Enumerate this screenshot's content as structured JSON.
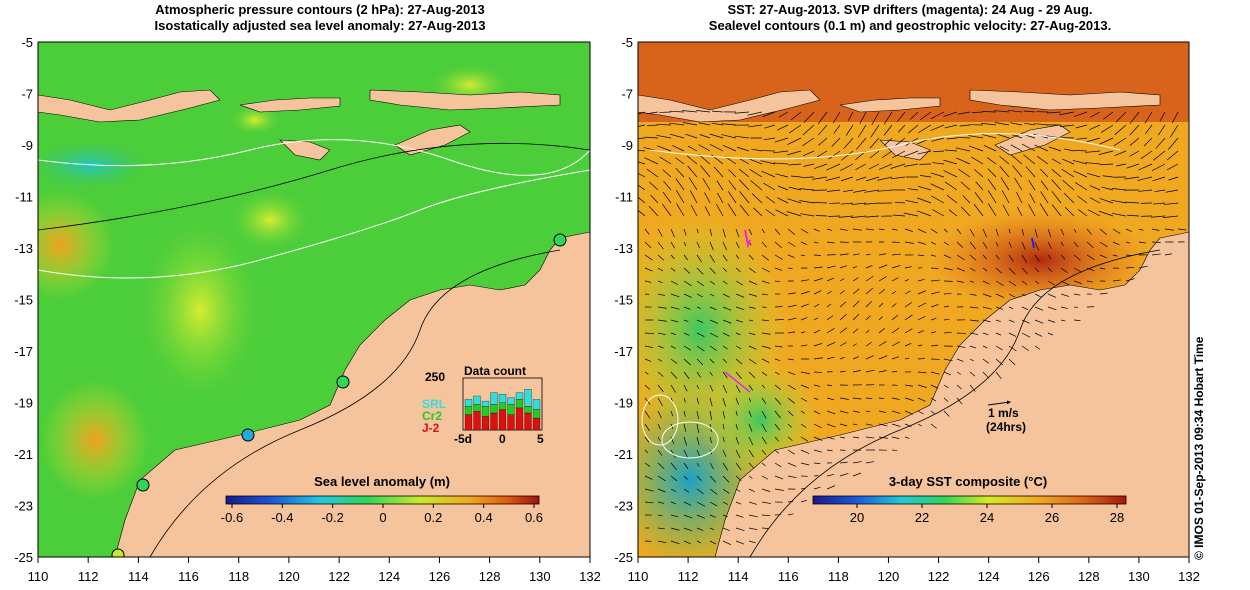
{
  "left_panel": {
    "title_line1": "Atmospheric pressure contours (2 hPa): 27-Aug-2013",
    "title_line2": "Isostatically adjusted sea level anomaly: 27-Aug-2013",
    "colorbar": {
      "label": "Sea level anomaly (m)",
      "ticks": [
        "-0.6",
        "-0.4",
        "-0.2",
        "0",
        "0.2",
        "0.4",
        "0.6"
      ]
    },
    "inset": {
      "title": "Data count",
      "max_label": "250",
      "x_ticks": [
        "-5d",
        "0",
        "5"
      ],
      "legend": [
        {
          "label": "SRL",
          "color": "#33dddd"
        },
        {
          "label": "Cr2",
          "color": "#22cc22"
        },
        {
          "label": "J-2",
          "color": "#dd1111"
        }
      ]
    }
  },
  "right_panel": {
    "title_line1": "SST: 27-Aug-2013. SVP drifters (magenta): 24 Aug - 29 Aug.",
    "title_line2": "Sealevel contours (0.1 m) and geostrophic velocity: 27-Aug-2013.",
    "colorbar": {
      "label": "3-day SST composite (°C)",
      "ticks": [
        "20",
        "22",
        "24",
        "26",
        "28"
      ]
    },
    "scale_label_1": "1 m/s",
    "scale_label_2": "(24hrs)"
  },
  "axes": {
    "lon_ticks": [
      "110",
      "112",
      "114",
      "116",
      "118",
      "120",
      "122",
      "124",
      "126",
      "128",
      "130",
      "132"
    ],
    "lat_ticks": [
      "-5",
      "-7",
      "-9",
      "-11",
      "-13",
      "-15",
      "-17",
      "-19",
      "-21",
      "-23",
      "-25"
    ]
  },
  "copyright": "© IMOS 01-Sep-2013 09:34 Hobart Time",
  "colors": {
    "land": "#f5c49c",
    "ocean_left": "#4ccd3a",
    "ocean_right": "#f0a020"
  }
}
